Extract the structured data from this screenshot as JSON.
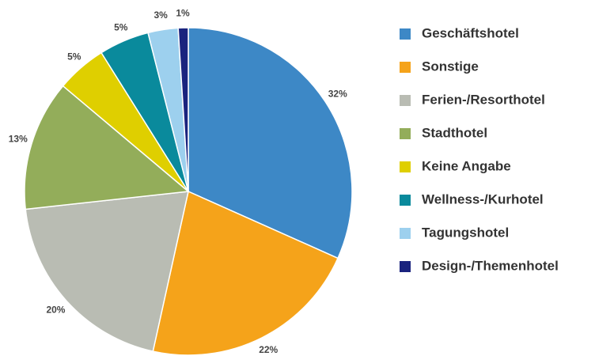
{
  "chart_data": {
    "type": "pie",
    "categories": [
      "Geschäftshotel",
      "Sonstige",
      "Ferien-/Resorthotel",
      "Stadthotel",
      "Keine Angabe",
      "Wellness-/Kurhotel",
      "Tagungshotel",
      "Design-/Themenhotel"
    ],
    "values": [
      32,
      22,
      20,
      13,
      5,
      5,
      3,
      1
    ],
    "value_labels": [
      "32%",
      "22%",
      "20%",
      "13%",
      "5%",
      "5%",
      "3%",
      "1%"
    ],
    "colors": [
      "#3d88c6",
      "#f5a31a",
      "#b9bcb3",
      "#93ad5a",
      "#dfcf00",
      "#0a8a9c",
      "#9dd0ee",
      "#1a237e"
    ],
    "legend": "right"
  }
}
